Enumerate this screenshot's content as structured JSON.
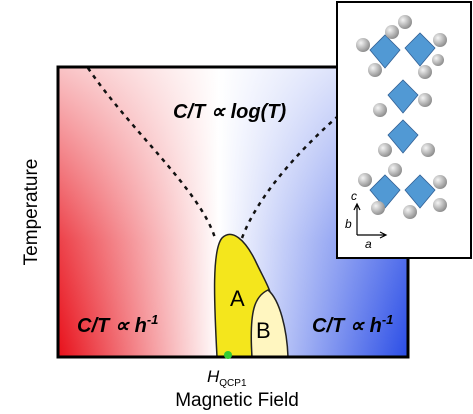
{
  "diagram": {
    "top_region": "C/T ∝ log(T)",
    "left_region": {
      "base": "C/T ∝ h",
      "sup": "-1"
    },
    "right_region": {
      "base": "C/T ∝ h",
      "sup": "-1"
    },
    "phase_a": "A",
    "phase_b": "B",
    "qcp": {
      "base": "H",
      "sub": "QCP1"
    },
    "x_axis": "Magnetic Field",
    "y_axis": "Temperature",
    "inset_axes": {
      "c": "c",
      "b": "b",
      "a": "a"
    }
  }
}
